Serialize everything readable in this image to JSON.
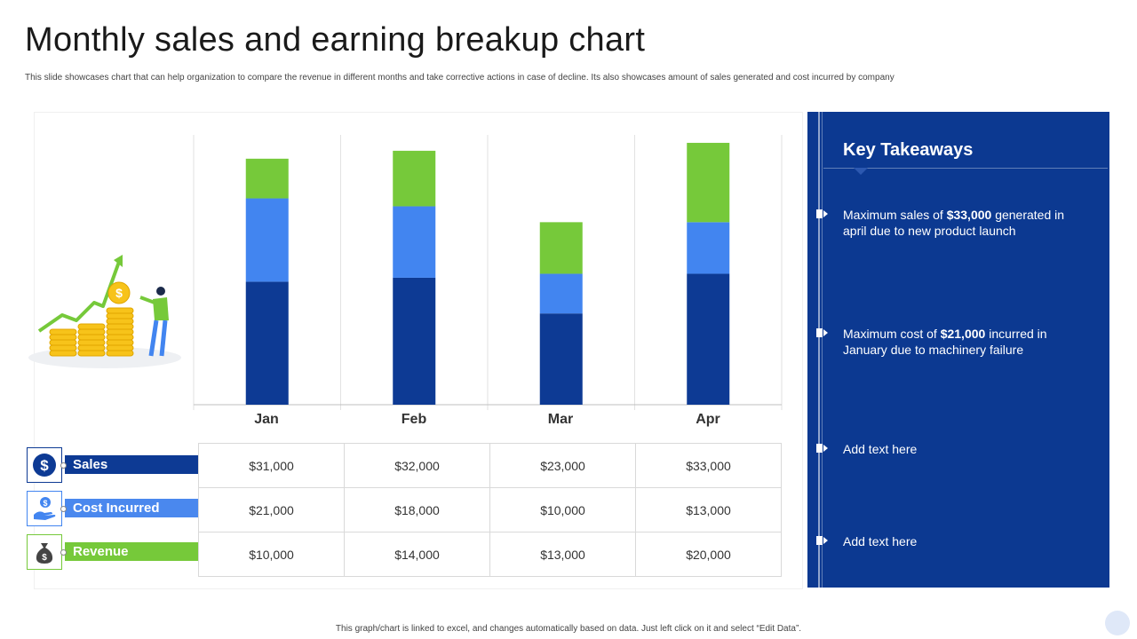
{
  "header": {
    "title": "Monthly sales and earning breakup chart",
    "subtitle": "This slide showcases chart that can help organization to compare the revenue in different months and take corrective actions in case of decline. Its also showcases amount of sales generated and cost incurred by company"
  },
  "colors": {
    "sales": "#0d3a94",
    "cost": "#4285f0",
    "revenue": "#76c93a",
    "panel": "#0c3991"
  },
  "chart_data": {
    "type": "bar",
    "stacked": true,
    "categories": [
      "Jan",
      "Feb",
      "Mar",
      "Apr"
    ],
    "series": [
      {
        "name": "Sales",
        "values": [
          31000,
          32000,
          23000,
          33000
        ],
        "color": "#0d3a94"
      },
      {
        "name": "Cost Incurred",
        "values": [
          21000,
          18000,
          10000,
          13000
        ],
        "color": "#4285f0"
      },
      {
        "name": "Revenue",
        "values": [
          10000,
          14000,
          13000,
          20000
        ],
        "color": "#76c93a"
      }
    ],
    "grid": true,
    "legend": "table-left"
  },
  "table": {
    "rows": [
      {
        "label": "Sales",
        "cells": [
          "$31,000",
          "$32,000",
          "$23,000",
          "$33,000"
        ]
      },
      {
        "label": "Cost Incurred",
        "cells": [
          "$21,000",
          "$18,000",
          "$10,000",
          "$13,000"
        ]
      },
      {
        "label": "Revenue",
        "cells": [
          "$10,000",
          "$14,000",
          "$13,000",
          "$20,000"
        ]
      }
    ]
  },
  "takeaways": {
    "heading": "Key Takeaways",
    "items": [
      {
        "pre": "Maximum sales of ",
        "bold": "$33,000",
        "post": " generated in april due to new product launch"
      },
      {
        "pre": "Maximum cost of ",
        "bold": "$21,000",
        "post": " incurred in January due to machinery failure"
      },
      {
        "pre": "Add text here",
        "bold": "",
        "post": ""
      },
      {
        "pre": "Add text here",
        "bold": "",
        "post": ""
      }
    ]
  },
  "footer": {
    "note": "This graph/chart is linked to excel, and changes automatically based on data. Just left click on it and select “Edit Data”."
  },
  "icons": {
    "sales": "dollar-icon",
    "cost": "hand-coin-icon",
    "revenue": "money-bag-icon",
    "illustration": "growth-coins-illustration"
  }
}
